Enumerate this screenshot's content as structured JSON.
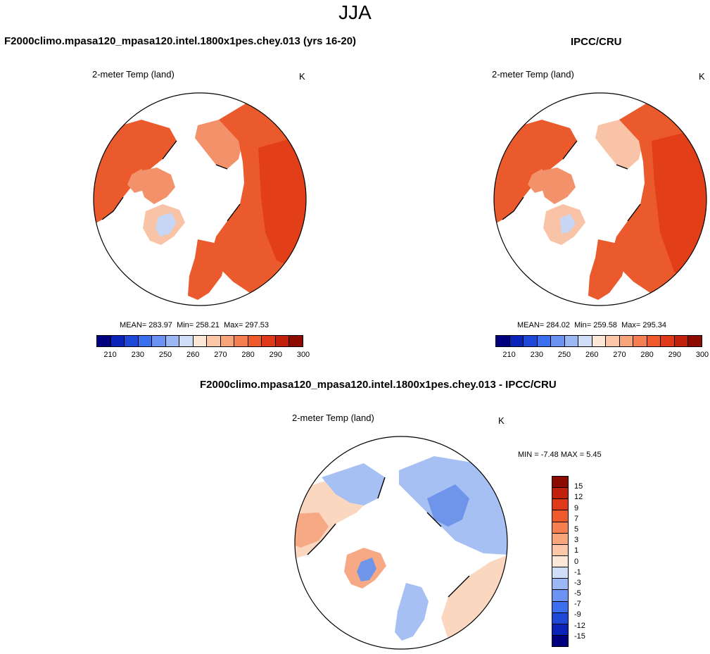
{
  "figure": {
    "title": "JJA",
    "field_label": "2-meter Temp (land)",
    "units": "K"
  },
  "panels": {
    "model": {
      "title": "F2000climo.mpasa120_mpasa120.intel.1800x1pes.chey.013 (yrs 16-20)",
      "stats": {
        "mean_label": "MEAN=",
        "mean": "283.97",
        "min_label": "Min=",
        "min": "258.21",
        "max_label": "Max=",
        "max": "297.53"
      }
    },
    "obs": {
      "title": "IPCC/CRU",
      "stats": {
        "mean_label": "MEAN=",
        "mean": "284.02",
        "min_label": "Min=",
        "min": "259.58",
        "max_label": "Max=",
        "max": "295.34"
      }
    },
    "diff": {
      "title": "F2000climo.mpasa120_mpasa120.intel.1800x1pes.chey.013 - IPCC/CRU",
      "minmax": {
        "min_label": "MIN =",
        "min": "-7.48",
        "max_label": "MAX =",
        "max": "5.45"
      }
    }
  },
  "colorbars": {
    "abs": {
      "colors": [
        "#00007f",
        "#0a24b8",
        "#1e48d8",
        "#3c6ef0",
        "#6a93f4",
        "#9cb8f4",
        "#d0ddf6",
        "#fde7d6",
        "#fbc7a6",
        "#f9a57c",
        "#f57f50",
        "#ee5a2c",
        "#e0391a",
        "#c0200c",
        "#8c0a00"
      ],
      "tick_labels": [
        "210",
        "230",
        "250",
        "260",
        "270",
        "280",
        "290",
        "300"
      ]
    },
    "diff": {
      "colors": [
        "#00007f",
        "#0a24b8",
        "#1e48d8",
        "#3c6ef0",
        "#6a93f4",
        "#9cb8f4",
        "#d0ddf6",
        "#fde7d6",
        "#fbc7a6",
        "#f9a57c",
        "#f57f50",
        "#ee5a2c",
        "#e0391a",
        "#c0200c",
        "#8c0a00"
      ],
      "tick_labels": [
        "15",
        "12",
        "9",
        "7",
        "5",
        "3",
        "1",
        "0",
        "-1",
        "-3",
        "-5",
        "-7",
        "-9",
        "-12",
        "-15"
      ]
    }
  },
  "colors": {
    "land_warm": "#ea5a2c",
    "land_hot": "#e23f18",
    "land_mild": "#f3926a",
    "land_cool": "#f8c3a6",
    "ice": "#c6d6f4",
    "diff_blue": "#a6c0f4",
    "diff_blue_dark": "#6f95ea",
    "diff_peach": "#fbd7c0",
    "diff_orange": "#f7a985"
  }
}
